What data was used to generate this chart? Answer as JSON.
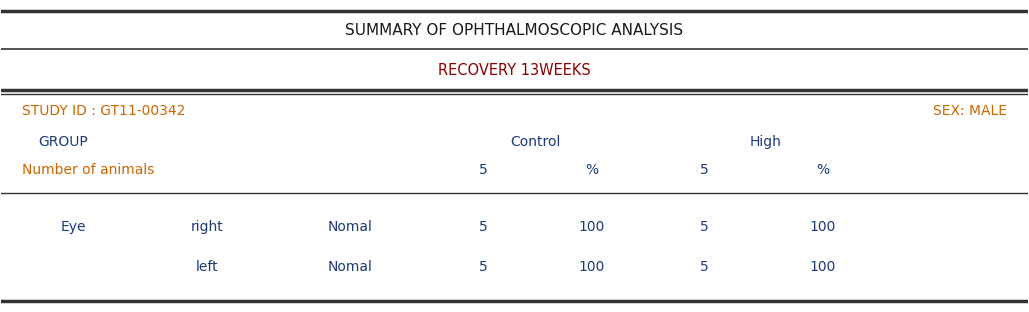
{
  "title1": "SUMMARY OF OPHTHALMOSCOPIC ANALYSIS",
  "title2": "RECOVERY 13WEEKS",
  "study_id": "STUDY ID : GT11-00342",
  "sex": "SEX: MALE",
  "group_label": "GROUP",
  "group_control": "Control",
  "group_high": "High",
  "num_animals_label": "Number of animals",
  "col_headers": [
    "5",
    "%",
    "5",
    "%"
  ],
  "rows": [
    [
      "Eye",
      "right",
      "Nomal",
      "5",
      "100",
      "5",
      "100"
    ],
    [
      "",
      "left",
      "Nomal",
      "5",
      "100",
      "5",
      "100"
    ]
  ],
  "title_color": "#1a1a1a",
  "header_color": "#8B0000",
  "blue_color": "#1e3a7a",
  "orange_color": "#cc6600",
  "bg_color": "#ffffff",
  "line_color": "#333333",
  "figsize": [
    10.29,
    3.12
  ],
  "dpi": 100
}
